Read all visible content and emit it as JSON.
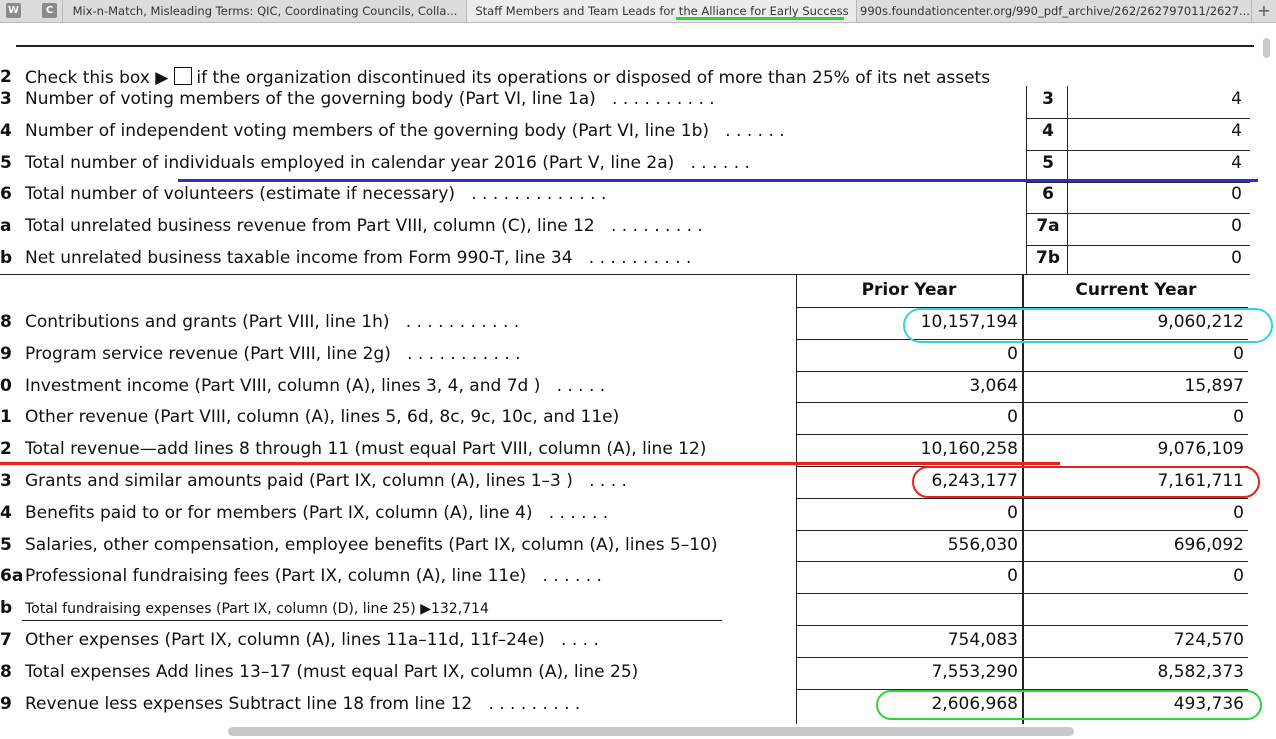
{
  "browser": {
    "icon1": "W",
    "icon2": "C",
    "tabs": [
      {
        "title": "Mix-n-Match, Misleading Terms: QIC, Coordinating Councils, Colla..."
      },
      {
        "title": "Staff Members and Team Leads for the Alliance for Early Success"
      },
      {
        "title": "990s.foundationcenter.org/990_pdf_archive/262/262797011/2627..."
      }
    ],
    "new_tab": "+"
  },
  "form": {
    "line2": {
      "num": "2",
      "text_before": "Check this box ▶",
      "text_after": "if the organization discontinued its operations or disposed of more than 25% of its net assets"
    },
    "governance": [
      {
        "num": "3",
        "label": "Number of voting members of the governing body (Part VI, line 1a)",
        "dots": ".   .   .   .   .   .   .   .   .   .",
        "ref": "3",
        "value": "4"
      },
      {
        "num": "4",
        "label": "Number of independent voting members of the governing body (Part VI, line 1b)",
        "dots": ".   .   .   .   .   .",
        "ref": "4",
        "value": "4"
      },
      {
        "num": "5",
        "label": "Total number of individuals employed in calendar year 2016 (Part V, line 2a)",
        "dots": ".   .   .   .   .   .",
        "ref": "5",
        "value": "4"
      },
      {
        "num": "6",
        "label": "Total number of volunteers (estimate if necessary)",
        "dots": ".   .   .   .   .   .   .   .   .   .   .   .   .",
        "ref": "6",
        "value": "0"
      },
      {
        "num": "a",
        "label": "Total unrelated business revenue from Part VIII, column (C), line 12",
        "dots": ".   .   .   .   .   .   .   .   .",
        "ref": "7a",
        "value": "0"
      },
      {
        "num": "b",
        "label": "Net unrelated business taxable income from Form 990-T, line 34",
        "dots": ".   .   .   .   .   .   .   .   .   .",
        "ref": "7b",
        "value": "0"
      }
    ],
    "col_prior": "Prior Year",
    "col_current": "Current Year",
    "financial": [
      {
        "num": "8",
        "label": "Contributions and grants (Part VIII, line 1h)",
        "dots": ".   .   .   .   .   .   .   .   .   .   .",
        "prior": "10,157,194",
        "current": "9,060,212"
      },
      {
        "num": "9",
        "label": "Program service revenue (Part VIII, line 2g)",
        "dots": ".   .   .   .   .   .   .   .   .   .   .",
        "prior": "0",
        "current": "0"
      },
      {
        "num": "0",
        "label": "Investment income (Part VIII, column (A), lines 3, 4, and 7d )",
        "dots": ".   .   .   .   .",
        "prior": "3,064",
        "current": "15,897"
      },
      {
        "num": "1",
        "label": "Other revenue (Part VIII, column (A), lines 5, 6d, 8c, 9c, 10c, and 11e)",
        "dots": "",
        "prior": "0",
        "current": "0"
      },
      {
        "num": "2",
        "label": "Total revenue—add lines 8 through 11 (must equal Part VIII, column (A), line 12)",
        "dots": "",
        "prior": "10,160,258",
        "current": "9,076,109"
      },
      {
        "num": "3",
        "label": "Grants and similar amounts paid (Part IX, column (A), lines 1–3 )",
        "dots": ".   .   .   .",
        "prior": "6,243,177",
        "current": "7,161,711"
      },
      {
        "num": "4",
        "label": "Benefits paid to or for members (Part IX, column (A), line 4)",
        "dots": ".   .   .   .   .   .",
        "prior": "0",
        "current": "0"
      },
      {
        "num": "5",
        "label": "Salaries, other compensation, employee benefits (Part IX, column (A), lines 5–10)",
        "dots": "",
        "prior": "556,030",
        "current": "696,092"
      },
      {
        "num": "6a",
        "label": "Professional fundraising fees (Part IX, column (A), line 11e)",
        "dots": ".   .   .   .   .   .",
        "prior": "0",
        "current": "0"
      },
      {
        "num": "b",
        "label": "Total fundraising expenses (Part IX, column (D), line 25) ▶132,714",
        "dots": "",
        "prior": "",
        "current": ""
      },
      {
        "num": "7",
        "label": "Other expenses (Part IX, column (A), lines 11a–11d, 11f–24e)",
        "dots": ".   .   .   .",
        "prior": "754,083",
        "current": "724,570"
      },
      {
        "num": "8",
        "label": "Total expenses  Add lines 13–17 (must equal Part IX, column (A), line 25)",
        "dots": "",
        "prior": "7,553,290",
        "current": "8,582,373"
      },
      {
        "num": "9",
        "label": "Revenue less expenses  Subtract line 18 from line 12",
        "dots": ".   .   .   .   .   .   .   .   .",
        "prior": "2,606,968",
        "current": "493,736"
      }
    ]
  },
  "annotations": {
    "blue": "#2b2bd6",
    "red": "#e8231b",
    "cyan": "#2fd3e6",
    "green": "#2fd33a"
  }
}
